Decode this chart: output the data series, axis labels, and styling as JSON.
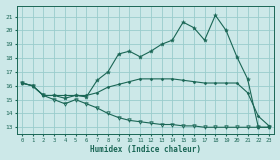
{
  "xlabel": "Humidex (Indice chaleur)",
  "bg_color": "#cce8e8",
  "grid_color": "#99cccc",
  "line_color": "#1a6655",
  "xlim": [
    -0.5,
    23.5
  ],
  "ylim": [
    12.5,
    21.8
  ],
  "xticks": [
    0,
    1,
    2,
    3,
    4,
    5,
    6,
    7,
    8,
    9,
    10,
    11,
    12,
    13,
    14,
    15,
    16,
    17,
    18,
    19,
    20,
    21,
    22,
    23
  ],
  "yticks": [
    13,
    14,
    15,
    16,
    17,
    18,
    19,
    20,
    21
  ],
  "line1_x": [
    0,
    1,
    2,
    3,
    4,
    5,
    6,
    7,
    8,
    9,
    10,
    11,
    12,
    13,
    14,
    15,
    16,
    17,
    18,
    19,
    20,
    21,
    22,
    23
  ],
  "line1_y": [
    16.2,
    16.0,
    15.3,
    15.3,
    15.1,
    15.3,
    15.2,
    16.4,
    17.0,
    18.3,
    18.5,
    18.1,
    18.5,
    19.0,
    19.3,
    20.6,
    20.2,
    19.3,
    21.1,
    20.0,
    18.1,
    16.5,
    13.0,
    13.0
  ],
  "line2_x": [
    0,
    1,
    2,
    3,
    4,
    5,
    6,
    7,
    8,
    9,
    10,
    11,
    12,
    13,
    14,
    15,
    16,
    17,
    18,
    19,
    20,
    21,
    22,
    23
  ],
  "line2_y": [
    16.2,
    16.0,
    15.3,
    15.3,
    15.3,
    15.3,
    15.3,
    15.5,
    15.9,
    16.1,
    16.3,
    16.5,
    16.5,
    16.5,
    16.5,
    16.4,
    16.3,
    16.2,
    16.2,
    16.2,
    16.2,
    15.5,
    13.8,
    13.1
  ],
  "line3_x": [
    0,
    1,
    2,
    3,
    4,
    5,
    6,
    7,
    8,
    9,
    10,
    11,
    12,
    13,
    14,
    15,
    16,
    17,
    18,
    19,
    20,
    21,
    22,
    23
  ],
  "line3_y": [
    16.2,
    16.0,
    15.3,
    15.0,
    14.7,
    15.0,
    14.7,
    14.4,
    14.0,
    13.7,
    13.5,
    13.4,
    13.3,
    13.2,
    13.2,
    13.1,
    13.1,
    13.0,
    13.0,
    13.0,
    13.0,
    13.0,
    13.0,
    13.0
  ]
}
